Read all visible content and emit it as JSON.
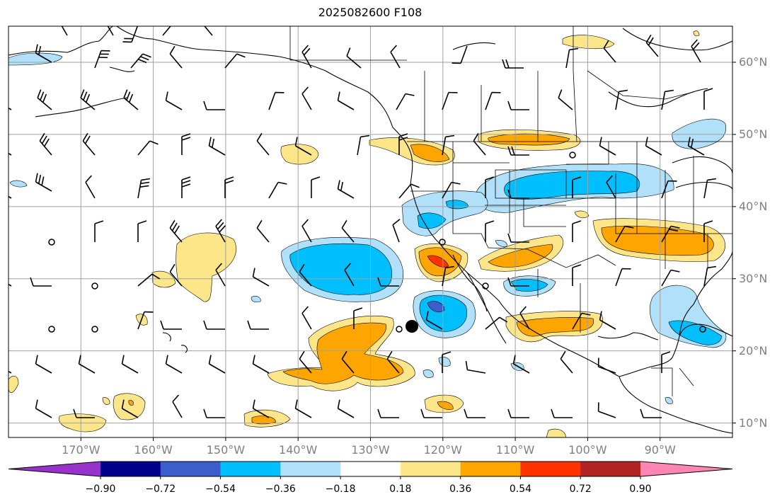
{
  "title": "2025082600 F108",
  "lat_ticks": [
    "60°N",
    "50°N",
    "40°N",
    "30°N",
    "20°N",
    "10°N"
  ],
  "lon_ticks": [
    "170°W",
    "160°W",
    "150°W",
    "140°W",
    "130°W",
    "120°W",
    "110°W",
    "100°W",
    "90°W"
  ],
  "colorbar": {
    "labels": [
      "−0.90",
      "−0.72",
      "−0.54",
      "−0.36",
      "−0.18",
      "0.18",
      "0.36",
      "0.54",
      "0.72",
      "0.90"
    ],
    "colors": [
      "#9932cc",
      "#00008b",
      "#3a5fcd",
      "#00bfff",
      "#b0e0fa",
      "#ffffff",
      "#fde68a",
      "#ffa500",
      "#ff3300",
      "#b22222",
      "#ff85b3"
    ]
  },
  "map": {
    "projection": "equirectangular",
    "extent": {
      "lon": [
        -180,
        -80
      ],
      "lat": [
        8,
        65
      ]
    },
    "grid": true,
    "features": [
      "coastlines",
      "country-borders",
      "state-borders",
      "wind-barbs",
      "filled-contours"
    ],
    "color_levels": {
      "pos1": "#fde68a",
      "pos2": "#ffa500",
      "pos3": "#ff3300",
      "neg1": "#b0e0fa",
      "neg2": "#00bfff",
      "neg3": "#3a5fcd"
    }
  }
}
